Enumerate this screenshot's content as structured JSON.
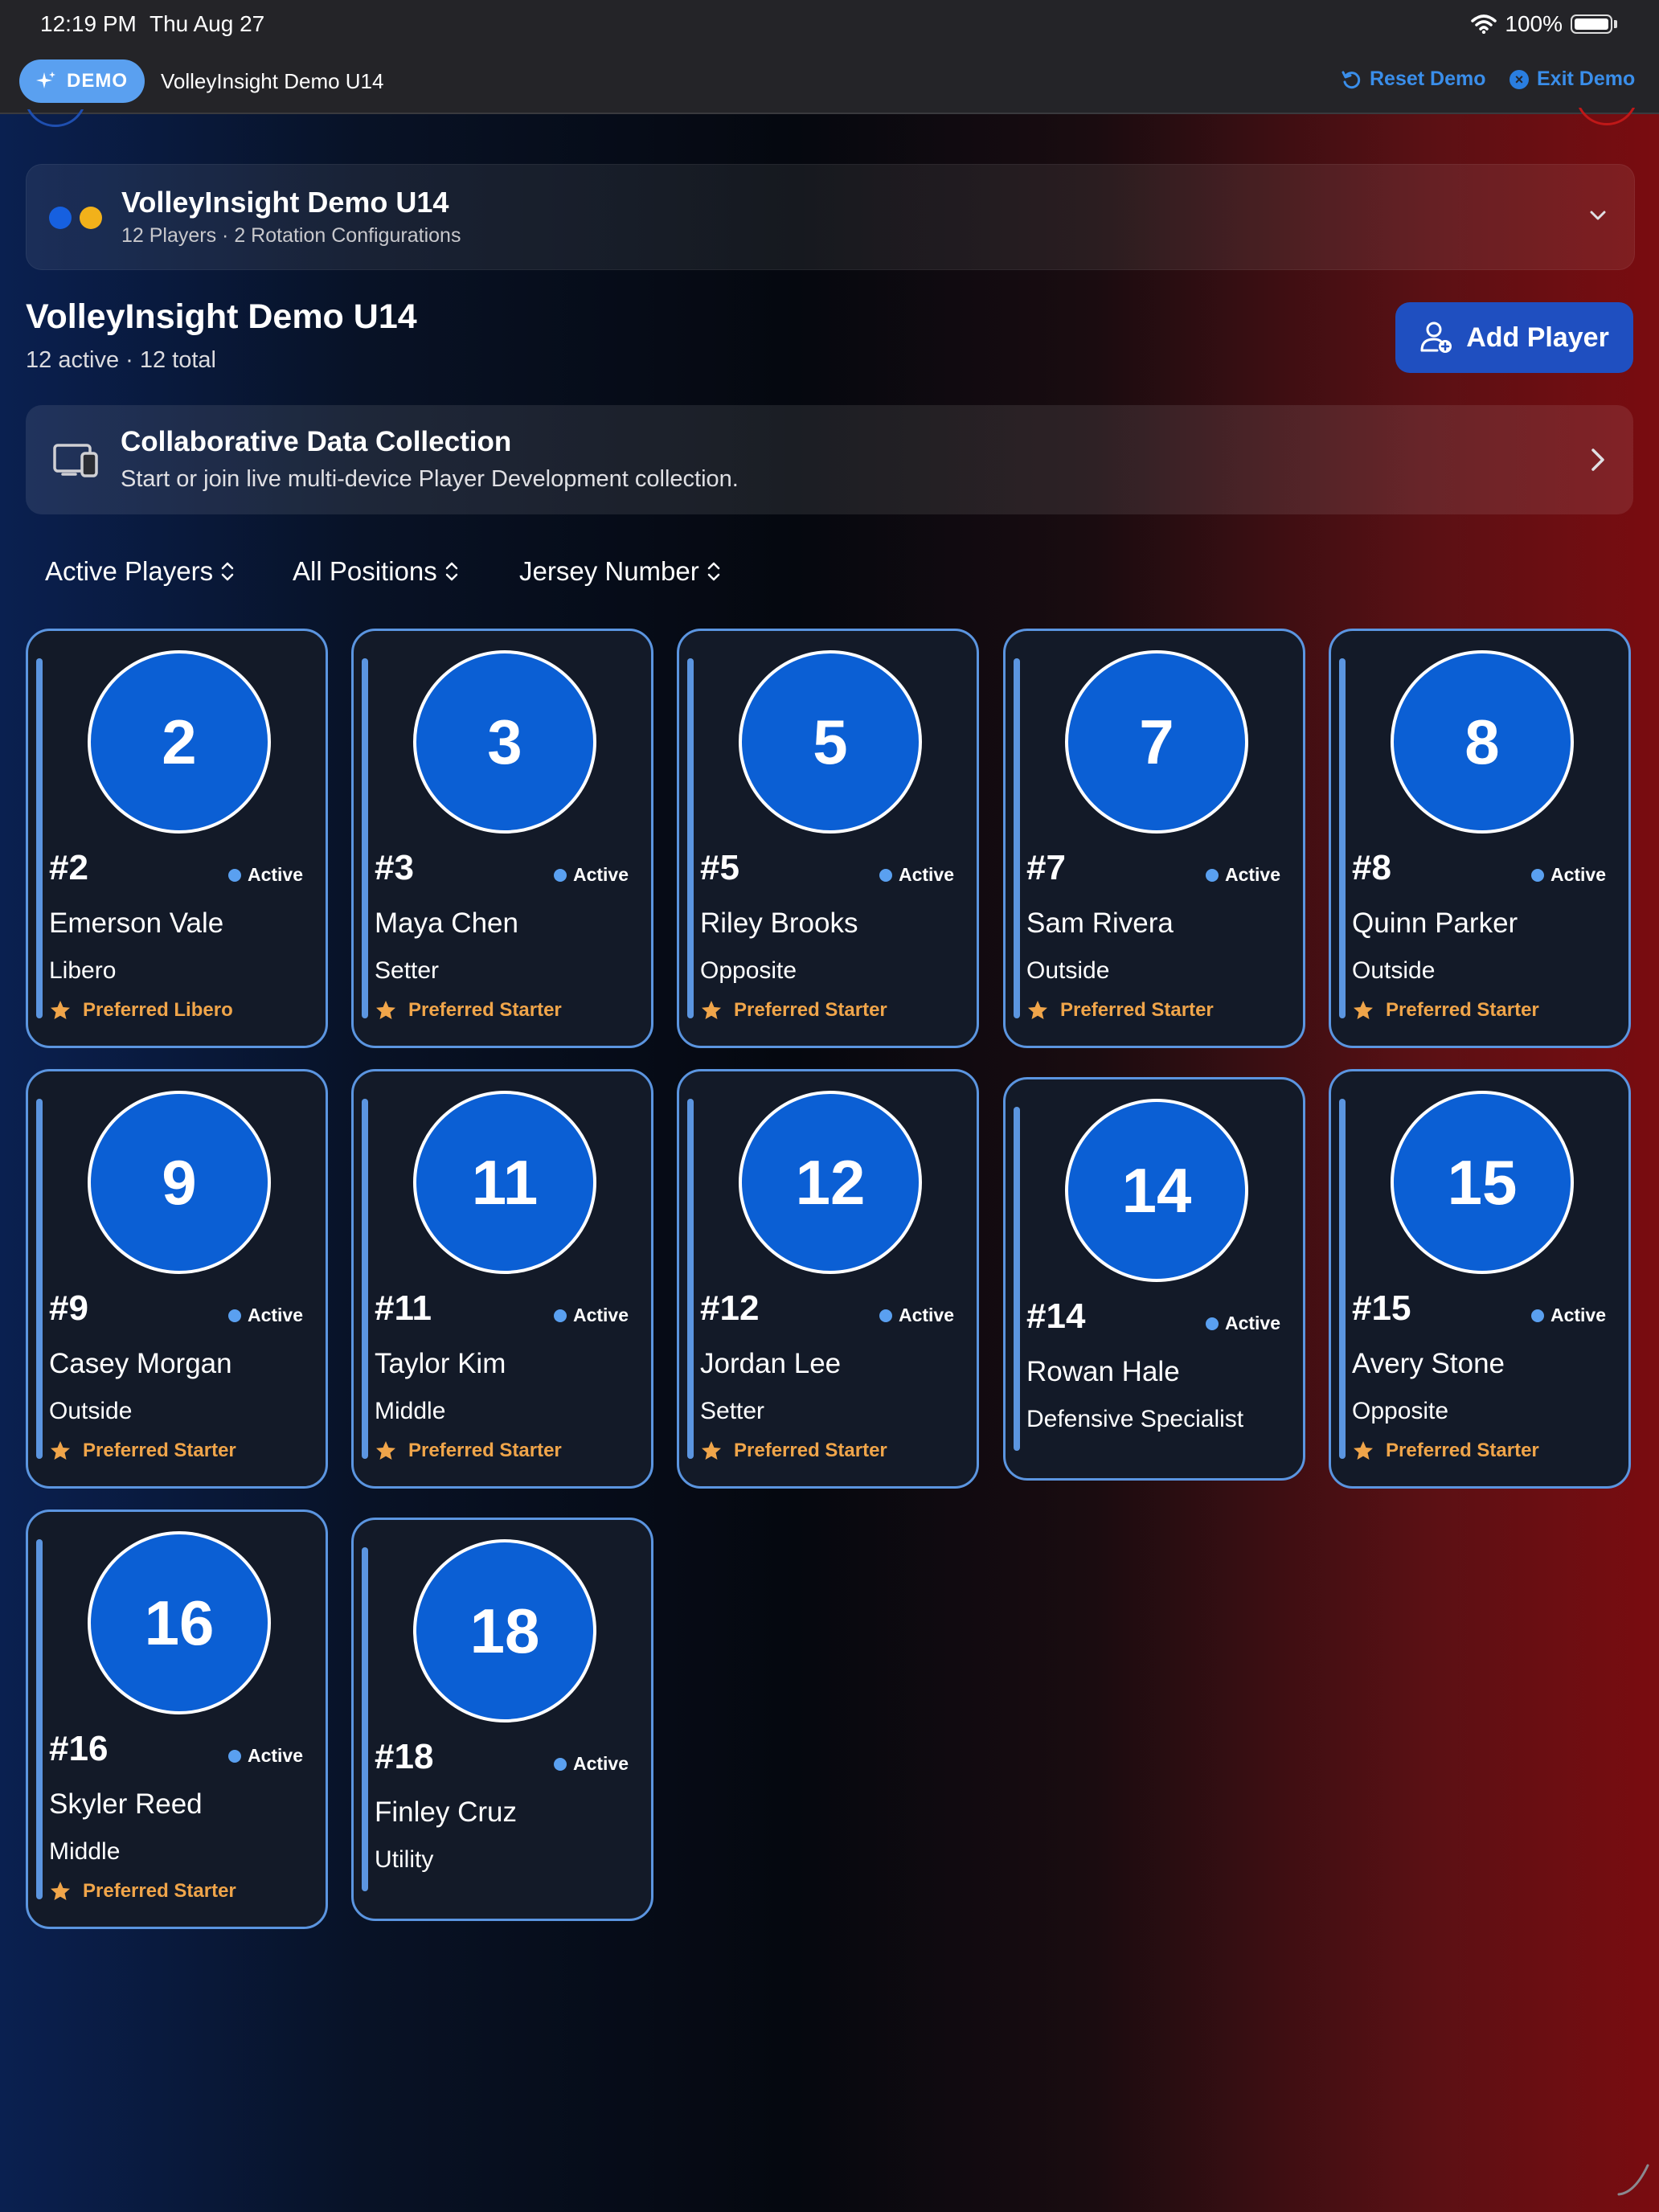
{
  "status_bar": {
    "time": "12:19 PM",
    "date": "Thu Aug 27",
    "battery": "100%"
  },
  "demo_bar": {
    "badge": "DEMO",
    "title": "VolleyInsight Demo U14",
    "reset_label": "Reset Demo",
    "exit_label": "Exit Demo"
  },
  "team_selector": {
    "name": "VolleyInsight Demo U14",
    "subtitle": "12 Players · 2 Rotation Configurations"
  },
  "header": {
    "title": "VolleyInsight Demo U14",
    "subtitle": "12 active · 12 total",
    "add_player_label": "Add Player"
  },
  "collab": {
    "title": "Collaborative Data Collection",
    "subtitle": "Start or join live multi-device Player Development collection."
  },
  "filters": {
    "status": "Active Players",
    "position": "All Positions",
    "sort": "Jersey Number"
  },
  "players": [
    {
      "number": "2",
      "tag": "#2",
      "status": "Active",
      "name": "Emerson Vale",
      "position": "Libero",
      "pref": "Preferred Libero"
    },
    {
      "number": "3",
      "tag": "#3",
      "status": "Active",
      "name": "Maya Chen",
      "position": "Setter",
      "pref": "Preferred Starter"
    },
    {
      "number": "5",
      "tag": "#5",
      "status": "Active",
      "name": "Riley Brooks",
      "position": "Opposite",
      "pref": "Preferred Starter"
    },
    {
      "number": "7",
      "tag": "#7",
      "status": "Active",
      "name": "Sam Rivera",
      "position": "Outside",
      "pref": "Preferred Starter"
    },
    {
      "number": "8",
      "tag": "#8",
      "status": "Active",
      "name": "Quinn Parker",
      "position": "Outside",
      "pref": "Preferred Starter"
    },
    {
      "number": "9",
      "tag": "#9",
      "status": "Active",
      "name": "Casey Morgan",
      "position": "Outside",
      "pref": "Preferred Starter"
    },
    {
      "number": "11",
      "tag": "#11",
      "status": "Active",
      "name": "Taylor Kim",
      "position": "Middle",
      "pref": "Preferred Starter"
    },
    {
      "number": "12",
      "tag": "#12",
      "status": "Active",
      "name": "Jordan Lee",
      "position": "Setter",
      "pref": "Preferred Starter"
    },
    {
      "number": "14",
      "tag": "#14",
      "status": "Active",
      "name": "Rowan Hale",
      "position": "Defensive Specialist",
      "pref": ""
    },
    {
      "number": "15",
      "tag": "#15",
      "status": "Active",
      "name": "Avery Stone",
      "position": "Opposite",
      "pref": "Preferred Starter"
    },
    {
      "number": "16",
      "tag": "#16",
      "status": "Active",
      "name": "Skyler Reed",
      "position": "Middle",
      "pref": "Preferred Starter"
    },
    {
      "number": "18",
      "tag": "#18",
      "status": "Active",
      "name": "Finley Cruz",
      "position": "Utility",
      "pref": ""
    }
  ],
  "colors": {
    "accent": "#5b95e0",
    "avatar": "#0b5fd4",
    "preferred": "#f0a54a",
    "add_button": "#1f4fc0"
  }
}
